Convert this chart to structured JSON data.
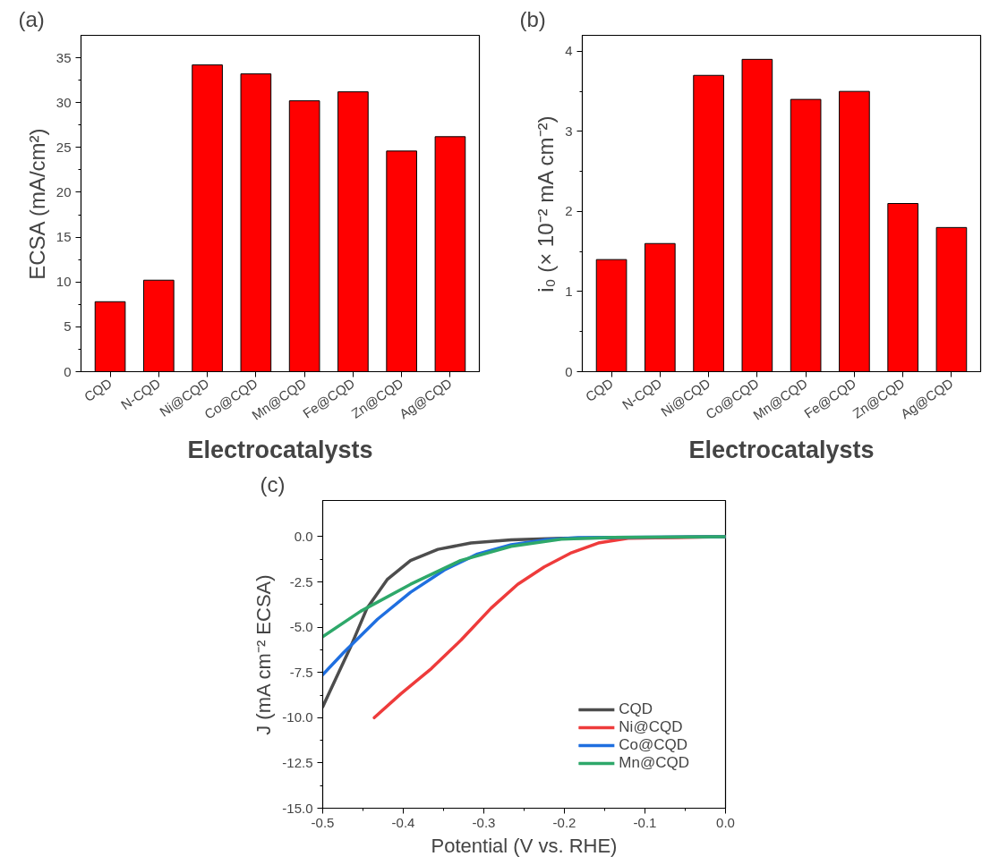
{
  "chart_data": [
    {
      "type": "bar",
      "title": "(a)",
      "xlabel": "Electrocatalysts",
      "ylabel": "ECSA (mA/cm²)",
      "categories": [
        "CQD",
        "N-CQD",
        "Ni@CQD",
        "Co@CQD",
        "Mn@CQD",
        "Fe@CQD",
        "Zn@CQD",
        "Ag@CQD"
      ],
      "values": [
        7.8,
        10.2,
        34.2,
        33.2,
        30.2,
        31.2,
        24.6,
        26.2
      ],
      "color": "#ff0000",
      "ylim": [
        0,
        37.5
      ],
      "yticks": [
        0,
        5,
        10,
        15,
        20,
        25,
        30,
        35
      ]
    },
    {
      "type": "bar",
      "title": "(b)",
      "xlabel": "Electrocatalysts",
      "ylabel": "i₀ (× 10⁻² mA cm⁻²)",
      "categories": [
        "CQD",
        "N-CQD",
        "Ni@CQD",
        "Co@CQD",
        "Mn@CQD",
        "Fe@CQD",
        "Zn@CQD",
        "Ag@CQD"
      ],
      "values": [
        1.4,
        1.6,
        3.7,
        3.9,
        3.4,
        3.5,
        2.1,
        1.8
      ],
      "color": "#ff0000",
      "ylim": [
        0,
        4.2
      ],
      "yticks": [
        0,
        1,
        2,
        3,
        4
      ]
    },
    {
      "type": "line",
      "title": "(c)",
      "xlabel": "Potential (V vs. RHE)",
      "ylabel": "J (mA cm⁻² ECSA)",
      "legend": "bottom right",
      "xlim": [
        -0.5,
        0
      ],
      "ylim": [
        -15,
        2
      ],
      "xticks": [
        {
          "value": -0.5,
          "label": "-0.5"
        },
        {
          "value": -0.4,
          "label": "-0.4"
        },
        {
          "value": -0.3,
          "label": "-0.3"
        },
        {
          "value": -0.2,
          "label": "-0.2"
        },
        {
          "value": -0.1,
          "label": "-0.1"
        },
        {
          "value": 0,
          "label": "0.0"
        }
      ],
      "yticks": [
        {
          "value": -15,
          "label": "-15.0"
        },
        {
          "value": -12.5,
          "label": "-12.5"
        },
        {
          "value": -10,
          "label": "-10.0"
        },
        {
          "value": -7.5,
          "label": "-7.5"
        },
        {
          "value": -5,
          "label": "-5.0"
        },
        {
          "value": -2.5,
          "label": "-2.5"
        },
        {
          "value": 0,
          "label": "0.0"
        }
      ],
      "series": [
        {
          "name": "CQD",
          "color": "#4d4d4d",
          "x": [
            -0.5,
            -0.465,
            -0.445,
            -0.42,
            -0.391,
            -0.357,
            -0.316,
            -0.266,
            -0.204,
            0
          ],
          "values": [
            -9.4,
            -6.05,
            -3.95,
            -2.37,
            -1.32,
            -0.7,
            -0.35,
            -0.18,
            -0.09,
            0
          ]
        },
        {
          "name": "Ni@CQD",
          "color": "#ee3b3b",
          "x": [
            -0.436,
            -0.403,
            -0.365,
            -0.328,
            -0.291,
            -0.258,
            -0.225,
            -0.191,
            -0.158,
            -0.121,
            0
          ],
          "values": [
            -10.0,
            -8.68,
            -7.28,
            -5.7,
            -3.95,
            -2.63,
            -1.67,
            -0.88,
            -0.35,
            -0.09,
            0
          ]
        },
        {
          "name": "Co@CQD",
          "color": "#1f6fe0",
          "x": [
            -0.5,
            -0.474,
            -0.432,
            -0.391,
            -0.349,
            -0.308,
            -0.266,
            -0.225,
            -0.183,
            0
          ],
          "values": [
            -7.63,
            -6.4,
            -4.56,
            -3.07,
            -1.84,
            -0.96,
            -0.44,
            -0.18,
            -0.05,
            0
          ]
        },
        {
          "name": "Mn@CQD",
          "color": "#2ea86a",
          "x": [
            -0.5,
            -0.453,
            -0.391,
            -0.329,
            -0.266,
            -0.204,
            -0.141,
            0
          ],
          "values": [
            -5.53,
            -4.12,
            -2.63,
            -1.32,
            -0.53,
            -0.14,
            -0.04,
            0
          ]
        }
      ]
    }
  ]
}
